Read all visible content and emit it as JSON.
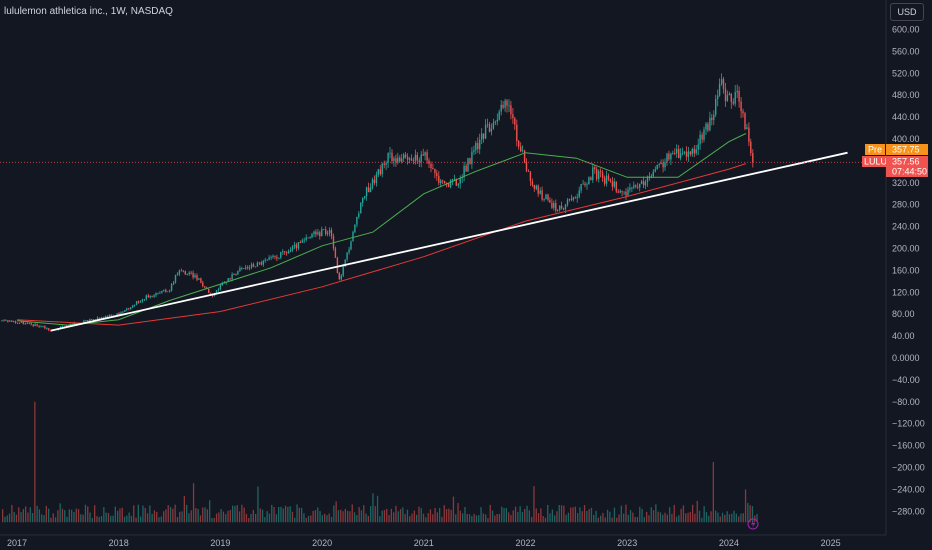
{
  "header": {
    "title": "lululemon athletica inc., 1W, NASDAQ",
    "currency": "USD"
  },
  "colors": {
    "up": "#26a69a",
    "down": "#ef5350",
    "ma_short": "#4caf50",
    "ma_long": "#e53935",
    "trendline": "#ffffff",
    "pre_badge": "#f7931a",
    "price_badge": "#ef5350"
  },
  "badges": {
    "pre": {
      "label": "Pre",
      "value": "357.75"
    },
    "last": {
      "label": "LULU",
      "value": "357.56",
      "countdown": "07:44:50"
    }
  },
  "chart_data": {
    "type": "candlestick",
    "x_axis": {
      "ticks": [
        "2017",
        "2018",
        "2019",
        "2020",
        "2021",
        "2022",
        "2023",
        "2024",
        "2025"
      ]
    },
    "y_axis": {
      "ticks": [
        "600.00",
        "560.00",
        "520.00",
        "480.00",
        "440.00",
        "400.00",
        "360.00",
        "320.00",
        "280.00",
        "240.00",
        "200.00",
        "160.00",
        "120.00",
        "80.00",
        "40.00",
        "0.0000",
        "−40.00",
        "−80.00",
        "−120.00",
        "−160.00",
        "−200.00",
        "−240.00",
        "−280.00"
      ],
      "range": [
        -300,
        620
      ]
    },
    "price_path": [
      [
        "2016-12",
        68
      ],
      [
        "2017-02",
        63
      ],
      [
        "2017-04",
        58
      ],
      [
        "2017-05",
        50
      ],
      [
        "2017-07",
        60
      ],
      [
        "2017-10",
        70
      ],
      [
        "2018-01",
        80
      ],
      [
        "2018-04",
        110
      ],
      [
        "2018-07",
        125
      ],
      [
        "2018-08",
        160
      ],
      [
        "2018-10",
        150
      ],
      [
        "2018-12",
        115
      ],
      [
        "2019-03",
        160
      ],
      [
        "2019-06",
        175
      ],
      [
        "2019-09",
        195
      ],
      [
        "2019-12",
        225
      ],
      [
        "2020-02",
        235
      ],
      [
        "2020-03",
        140
      ],
      [
        "2020-06",
        300
      ],
      [
        "2020-09",
        370
      ],
      [
        "2020-11",
        360
      ],
      [
        "2021-01",
        370
      ],
      [
        "2021-03",
        320
      ],
      [
        "2021-05",
        320
      ],
      [
        "2021-08",
        410
      ],
      [
        "2021-11",
        470
      ],
      [
        "2021-12",
        400
      ],
      [
        "2022-02",
        310
      ],
      [
        "2022-05",
        270
      ],
      [
        "2022-07",
        300
      ],
      [
        "2022-09",
        340
      ],
      [
        "2022-11",
        320
      ],
      [
        "2023-01",
        300
      ],
      [
        "2023-03",
        320
      ],
      [
        "2023-06",
        370
      ],
      [
        "2023-09",
        380
      ],
      [
        "2023-11",
        440
      ],
      [
        "2023-12",
        500
      ],
      [
        "2024-01",
        470
      ],
      [
        "2024-02",
        480
      ],
      [
        "2024-03",
        420
      ],
      [
        "2024-03-28",
        357.56
      ]
    ],
    "moving_averages": [
      {
        "period": 50,
        "color": "#4caf50",
        "path": [
          [
            "2017-01",
            68
          ],
          [
            "2017-07",
            60
          ],
          [
            "2018-01",
            70
          ],
          [
            "2018-07",
            105
          ],
          [
            "2019-01",
            135
          ],
          [
            "2019-07",
            165
          ],
          [
            "2020-01",
            205
          ],
          [
            "2020-07",
            230
          ],
          [
            "2021-01",
            300
          ],
          [
            "2021-07",
            340
          ],
          [
            "2022-01",
            375
          ],
          [
            "2022-07",
            365
          ],
          [
            "2023-01",
            330
          ],
          [
            "2023-07",
            330
          ],
          [
            "2024-01",
            395
          ],
          [
            "2024-03",
            410
          ]
        ]
      },
      {
        "period": 200,
        "color": "#e53935",
        "path": [
          [
            "2017-01",
            70
          ],
          [
            "2018-01",
            60
          ],
          [
            "2019-01",
            85
          ],
          [
            "2020-01",
            130
          ],
          [
            "2021-01",
            185
          ],
          [
            "2022-01",
            250
          ],
          [
            "2023-01",
            295
          ],
          [
            "2024-01",
            345
          ],
          [
            "2024-03",
            355
          ]
        ]
      }
    ],
    "trendline": {
      "start": [
        "2017-05",
        50
      ],
      "end": [
        "2025-03",
        375
      ]
    },
    "last_price": 357.56,
    "volume": {
      "baseline_y": -300,
      "spikes": [
        [
          "2017-03",
          -80
        ],
        [
          "2023-11",
          -190
        ],
        [
          "2024-03",
          -240
        ]
      ]
    }
  }
}
